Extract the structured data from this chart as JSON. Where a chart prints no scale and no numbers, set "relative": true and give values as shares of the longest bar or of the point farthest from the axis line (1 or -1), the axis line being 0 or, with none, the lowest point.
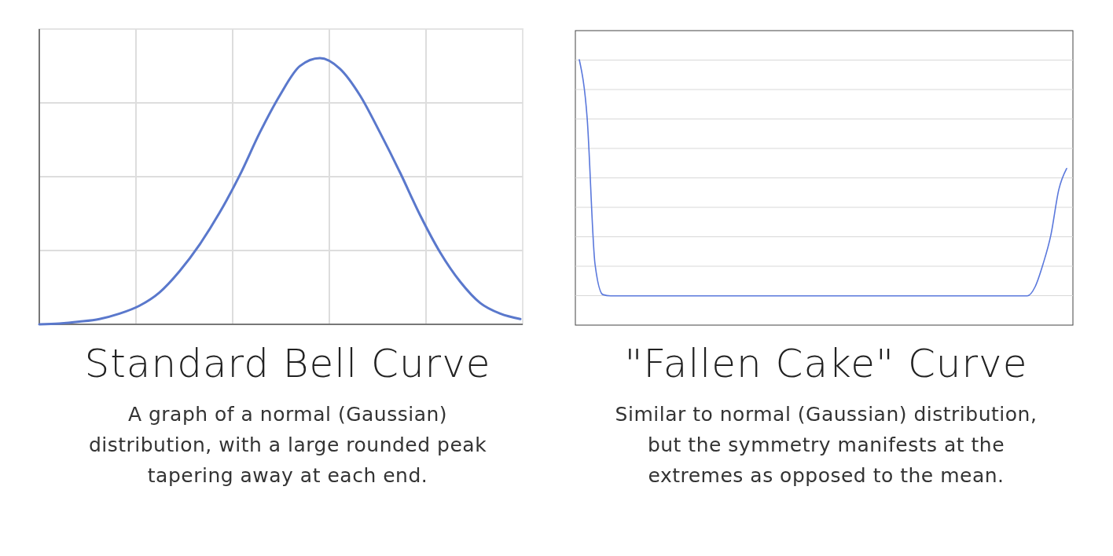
{
  "chart_data": [
    {
      "type": "line",
      "title": "Standard Bell Curve",
      "subtitle": "A graph of a normal (Gaussian)\ndistribution, with a large rounded peak\ntapering away at each end.",
      "relative": true,
      "grid": true,
      "categories": [
        null,
        null,
        null,
        null,
        null,
        null,
        null,
        null,
        null,
        null,
        null,
        null,
        null,
        null,
        null,
        null,
        null,
        null,
        null,
        null,
        null,
        null,
        null,
        null,
        null
      ],
      "series": [
        {
          "color": "#5a78cc",
          "values": [
            0,
            0.003,
            0.01,
            0.02,
            0.04,
            0.07,
            0.12,
            0.2,
            0.3,
            0.42,
            0.56,
            0.72,
            0.86,
            0.97,
            1,
            0.96,
            0.86,
            0.72,
            0.57,
            0.41,
            0.27,
            0.16,
            0.08,
            0.04,
            0.02
          ]
        }
      ]
    },
    {
      "type": "line",
      "title": "\"Fallen Cake\" Curve",
      "subtitle": "Similar to normal (Gaussian) distribution,\nbut the symmetry manifests at the\nextremes as opposed to the mean.",
      "relative": true,
      "grid": "y",
      "categories": [
        null,
        null,
        null,
        null,
        null,
        null,
        null,
        null,
        null,
        null,
        null,
        null,
        null,
        null,
        null,
        null,
        null,
        null,
        null,
        null,
        null,
        null,
        null,
        null,
        null,
        null,
        null,
        null,
        null,
        null,
        null,
        null,
        null,
        null,
        null,
        null,
        null,
        null,
        null,
        null,
        null,
        null,
        null,
        null,
        null,
        null,
        null,
        null,
        null,
        null,
        null,
        null,
        null,
        null,
        null,
        null,
        null,
        null,
        null,
        null,
        null,
        null,
        null
      ],
      "series": [
        {
          "color": "#5a78dc",
          "values": [
            1,
            0.78,
            0.23,
            0.115,
            0.11,
            0.11,
            0.11,
            0.11,
            0.11,
            0.11,
            0.11,
            0.11,
            0.11,
            0.11,
            0.11,
            0.11,
            0.11,
            0.11,
            0.11,
            0.11,
            0.11,
            0.11,
            0.11,
            0.11,
            0.11,
            0.11,
            0.11,
            0.11,
            0.11,
            0.11,
            0.11,
            0.11,
            0.11,
            0.11,
            0.11,
            0.11,
            0.11,
            0.11,
            0.11,
            0.11,
            0.11,
            0.11,
            0.11,
            0.11,
            0.11,
            0.11,
            0.11,
            0.11,
            0.11,
            0.11,
            0.11,
            0.11,
            0.11,
            0.11,
            0.11,
            0.11,
            0.11,
            0.11,
            0.145,
            0.23,
            0.34,
            0.51,
            0.59
          ]
        }
      ]
    }
  ]
}
